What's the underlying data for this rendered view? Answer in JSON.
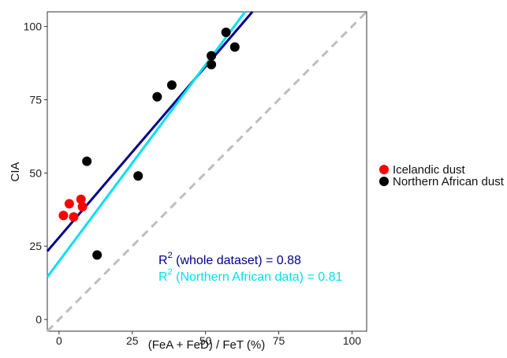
{
  "chart_data": {
    "type": "scatter",
    "xlabel": "(FeA + FeD) / FeT (%)",
    "ylabel": "CIA",
    "xlim": [
      -4,
      105
    ],
    "ylim": [
      -4,
      105
    ],
    "x_ticks": [
      0,
      25,
      50,
      75,
      100
    ],
    "y_ticks": [
      0,
      25,
      50,
      75,
      100
    ],
    "grid": false,
    "legend_position": "right",
    "series": [
      {
        "name": "Icelandic dust",
        "color": "#ff0000",
        "points": [
          {
            "x": 1.5,
            "y": 35.5
          },
          {
            "x": 3.5,
            "y": 39.5
          },
          {
            "x": 5,
            "y": 35
          },
          {
            "x": 7.5,
            "y": 41
          },
          {
            "x": 8,
            "y": 38.5
          }
        ]
      },
      {
        "name": "Northern African dust",
        "color": "#000000",
        "points": [
          {
            "x": 9.5,
            "y": 54
          },
          {
            "x": 13,
            "y": 22
          },
          {
            "x": 27,
            "y": 49
          },
          {
            "x": 33.5,
            "y": 76
          },
          {
            "x": 38.5,
            "y": 80
          },
          {
            "x": 52,
            "y": 90
          },
          {
            "x": 52,
            "y": 87
          },
          {
            "x": 57,
            "y": 98
          },
          {
            "x": 60,
            "y": 93
          }
        ]
      }
    ],
    "lines": [
      {
        "label": "whole dataset",
        "color": "#00008b",
        "style": "solid",
        "from": [
          -4,
          23.3
        ],
        "to": [
          66,
          105
        ]
      },
      {
        "label": "Northern African data",
        "color": "#00e0ee",
        "style": "solid",
        "from": [
          -4,
          14.5
        ],
        "to": [
          63.5,
          105
        ]
      },
      {
        "label": "1:1",
        "color": "#bebebe",
        "style": "dashed",
        "from": [
          -4,
          -4
        ],
        "to": [
          105,
          105
        ]
      }
    ],
    "annotations": [
      {
        "prefix": "R",
        "sup": "2",
        "text": " (whole dataset) = 0.88",
        "color": "#00008b"
      },
      {
        "prefix": "R",
        "sup": "2",
        "text": " (Northern African data) = 0.81",
        "color": "#00e0ee"
      }
    ]
  }
}
